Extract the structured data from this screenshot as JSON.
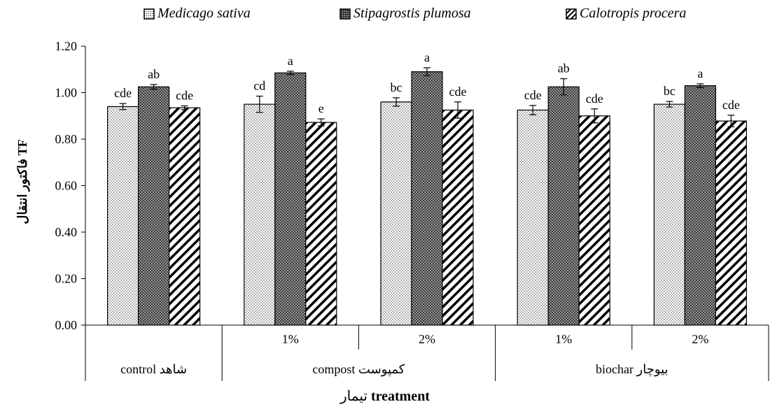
{
  "chart_data": {
    "type": "bar",
    "ylabel": "فاکتور انتقال TF",
    "xlabel_bold": "treatment",
    "xlabel_text": "تیمار",
    "ylim": [
      0,
      1.2
    ],
    "yticks": [
      "0.00",
      "0.20",
      "0.40",
      "0.60",
      "0.80",
      "1.00",
      "1.20"
    ],
    "grid": false,
    "legend_position": "top",
    "categories": [
      "control",
      "compost 1%",
      "compost 2%",
      "biochar 1%",
      "biochar 2%"
    ],
    "level1_labels": [
      "",
      "1%",
      "2%",
      "1%",
      "2%"
    ],
    "groups": [
      {
        "label": "control شاهد",
        "span": 1
      },
      {
        "label": "compost کمپوست",
        "span": 2
      },
      {
        "label": "biochar بیوچار",
        "span": 2
      }
    ],
    "series": [
      {
        "name": "Medicago sativa",
        "pattern": "dots",
        "values": [
          0.94,
          0.95,
          0.96,
          0.925,
          0.95
        ],
        "errors": [
          0.013,
          0.035,
          0.018,
          0.02,
          0.012
        ],
        "letters": [
          "cde",
          "cd",
          "bc",
          "cde",
          "bc"
        ]
      },
      {
        "name": "Stipagrostis plumosa",
        "pattern": "dense",
        "values": [
          1.025,
          1.085,
          1.09,
          1.025,
          1.03
        ],
        "errors": [
          0.01,
          0.007,
          0.017,
          0.035,
          0.008
        ],
        "letters": [
          "ab",
          "a",
          "a",
          "ab",
          "a"
        ]
      },
      {
        "name": "Calotropis procera",
        "pattern": "hatch",
        "values": [
          0.935,
          0.872,
          0.925,
          0.9,
          0.878
        ],
        "errors": [
          0.008,
          0.015,
          0.035,
          0.03,
          0.025
        ],
        "letters": [
          "cde",
          "e",
          "cde",
          "cde",
          "cde"
        ]
      }
    ]
  }
}
